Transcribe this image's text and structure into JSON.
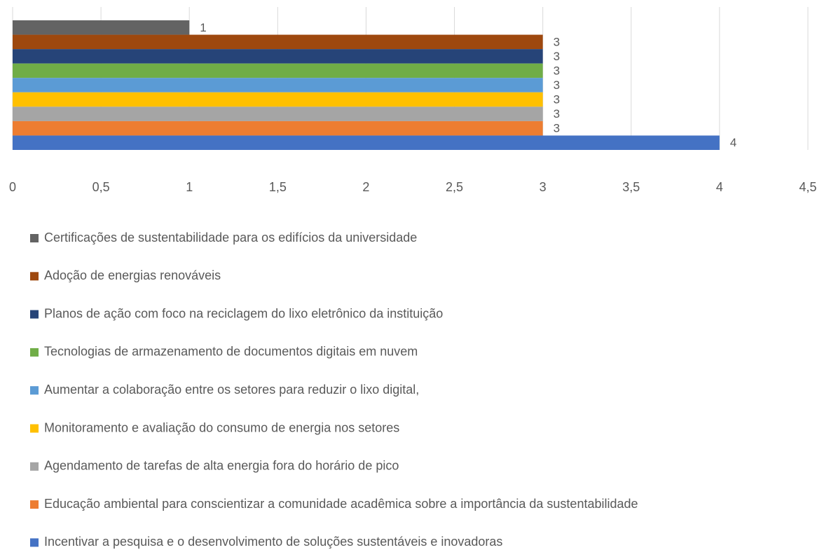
{
  "chart_data": {
    "type": "bar",
    "orientation": "horizontal",
    "xlim": [
      0,
      4.5
    ],
    "xticks": [
      0,
      {
        "value": 0.5,
        "label": "0,5"
      },
      1,
      {
        "value": 1.5,
        "label": "1,5"
      },
      2,
      {
        "value": 2.5,
        "label": "2,5"
      },
      3,
      {
        "value": 3.5,
        "label": "3,5"
      },
      4,
      {
        "value": 4.5,
        "label": "4,5"
      }
    ],
    "grid": true,
    "legend": "bottom",
    "series": [
      {
        "name": "Certificações de sustentabilidade para os edifícios da universidade",
        "color": "#636363",
        "values": [
          1
        ]
      },
      {
        "name": "Adoção de energias renováveis",
        "color": "#9e480e",
        "values": [
          3
        ]
      },
      {
        "name": "Planos de ação com foco na reciclagem do lixo eletrônico da instituição",
        "color": "#264478",
        "values": [
          3
        ]
      },
      {
        "name": "Tecnologias de armazenamento de documentos digitais em nuvem",
        "color": "#70ad47",
        "values": [
          3
        ]
      },
      {
        "name": "Aumentar a colaboração entre os setores para reduzir o lixo digital,",
        "color": "#5b9bd5",
        "values": [
          3
        ]
      },
      {
        "name": "Monitoramento e avaliação do consumo de energia nos setores",
        "color": "#ffc000",
        "values": [
          3
        ]
      },
      {
        "name": "Agendamento de tarefas de alta energia fora do horário de pico",
        "color": "#a5a5a5",
        "values": [
          3
        ]
      },
      {
        "name": "Educação ambiental para conscientizar a comunidade acadêmica sobre a importância da sustentabilidade",
        "color": "#ed7d31",
        "values": [
          3
        ]
      },
      {
        "name": "Incentivar a pesquisa e o desenvolvimento de soluções sustentáveis e inovadoras",
        "color": "#4472c4",
        "values": [
          4
        ]
      }
    ]
  }
}
